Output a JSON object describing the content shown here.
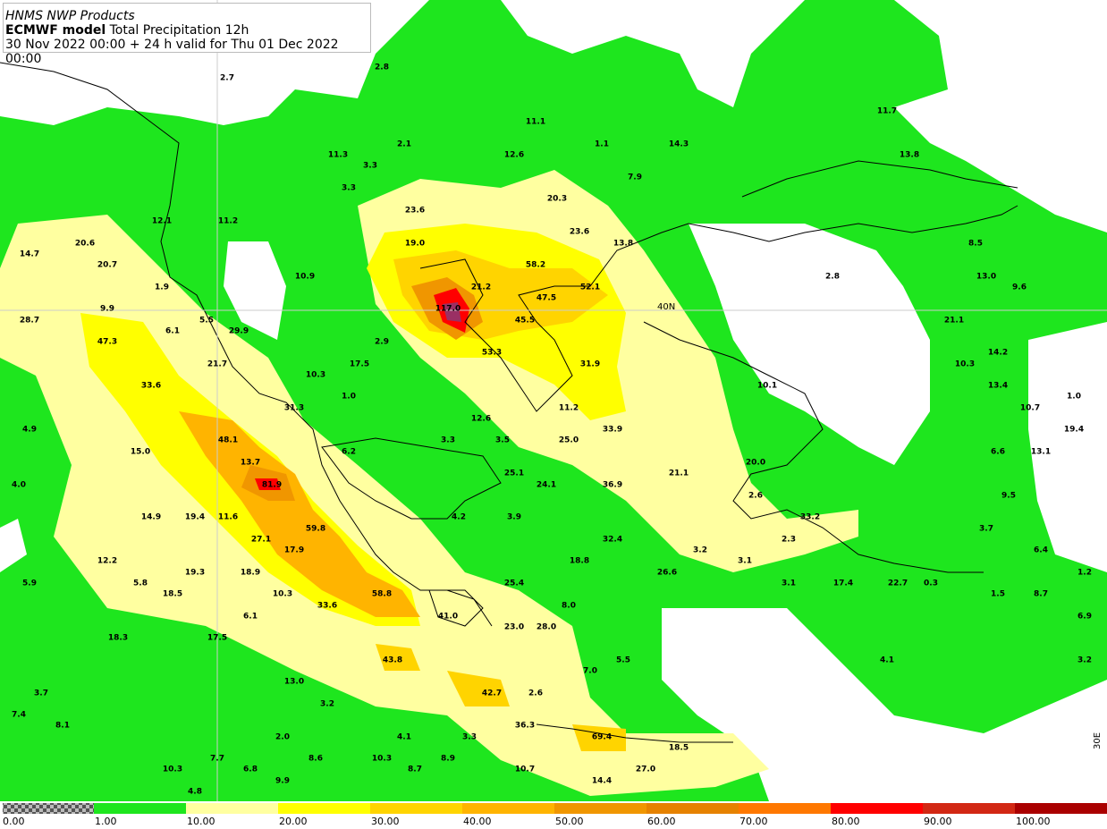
{
  "header": {
    "line1": "HNMS NWP Products",
    "model": "ECMWF model",
    "product": "Total Precipitation 12h",
    "line3": "30 Nov 2022 00:00 + 24 h valid for Thu 01 Dec 2022 00:00"
  },
  "map": {
    "lat_label": "40N",
    "lon_label": "30E",
    "labels": [
      "2.7",
      "2.8",
      "11.1",
      "1.1",
      "14.3",
      "11.7",
      "13.8",
      "2.1",
      "11.3",
      "3.3",
      "12.6",
      "7.9",
      "3.3",
      "20.3",
      "23.6",
      "12.1",
      "11.2",
      "23.6",
      "13.8",
      "19.0",
      "8.5",
      "20.6",
      "14.7",
      "20.7",
      "58.2",
      "10.9",
      "2.8",
      "13.0",
      "1.9",
      "21.2",
      "52.1",
      "9.6",
      "47.5",
      "9.9",
      "117.0",
      "28.7",
      "5.5",
      "45.5",
      "21.1",
      "6.1",
      "29.9",
      "47.3",
      "2.9",
      "53.3",
      "14.2",
      "21.7",
      "17.5",
      "31.9",
      "10.3",
      "10.3",
      "10.1",
      "33.6",
      "13.4",
      "1.0",
      "1.0",
      "31.3",
      "11.2",
      "10.7",
      "12.6",
      "48.1",
      "4.9",
      "33.9",
      "19.4",
      "3.3",
      "3.5",
      "25.0",
      "15.0",
      "6.2",
      "6.6",
      "13.1",
      "13.7",
      "20.0",
      "25.1",
      "21.1",
      "4.0",
      "81.9",
      "24.1",
      "36.9",
      "2.6",
      "9.5",
      "14.9",
      "19.4",
      "11.6",
      "4.2",
      "3.9",
      "33.2",
      "59.8",
      "3.7",
      "27.1",
      "32.4",
      "2.3",
      "17.9",
      "3.2",
      "6.4",
      "12.2",
      "18.8",
      "3.1",
      "19.3",
      "18.9",
      "26.6",
      "1.2",
      "5.9",
      "5.8",
      "25.4",
      "3.1",
      "17.4",
      "22.7",
      "0.3",
      "18.5",
      "10.3",
      "58.8",
      "1.5",
      "8.7",
      "33.6",
      "8.0",
      "6.1",
      "41.0",
      "6.9",
      "18.3",
      "17.5",
      "23.0",
      "28.0",
      "43.8",
      "4.1",
      "5.5",
      "3.2",
      "7.0",
      "13.0",
      "3.7",
      "42.7",
      "2.6",
      "3.2",
      "7.4",
      "8.1",
      "36.3",
      "2.0",
      "4.1",
      "3.3",
      "69.4",
      "18.5",
      "7.7",
      "8.6",
      "10.3",
      "8.9",
      "10.3",
      "6.8",
      "8.7",
      "10.7",
      "27.0",
      "9.9",
      "14.4",
      "4.8"
    ]
  },
  "colorbar": {
    "labels": [
      "0.00",
      "1.00",
      "10.00",
      "20.00",
      "30.00",
      "40.00",
      "50.00",
      "60.00",
      "70.00",
      "80.00",
      "90.00",
      "100.00"
    ],
    "colors": [
      "#1ee61e",
      "#ffffa0",
      "#ffff00",
      "#ffd400",
      "#ffb400",
      "#f09600",
      "#e68200",
      "#ff7800",
      "#ff0000",
      "#d22814",
      "#aa0000",
      "#9a3064"
    ]
  }
}
